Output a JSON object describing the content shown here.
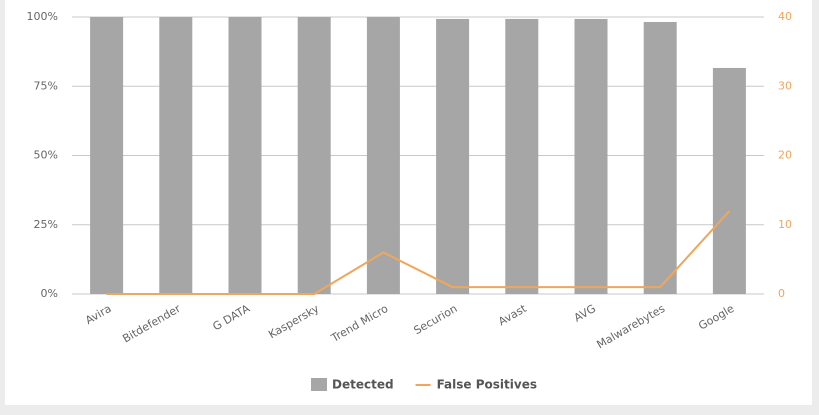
{
  "chart_data": {
    "type": "bar",
    "categories": [
      "Avira",
      "Bitdefender",
      "G DATA",
      "Kaspersky",
      "Trend Micro",
      "Securion",
      "Avast",
      "AVG",
      "Malwarebytes",
      "Google"
    ],
    "series": [
      {
        "name": "Detected",
        "color": "#a6a6a6",
        "values": [
          100,
          100,
          100,
          100,
          100,
          99.3,
          99.3,
          99.3,
          98.2,
          81.6
        ]
      },
      {
        "name": "False Positives",
        "type": "line",
        "axis": "y2",
        "color": "#f0a65c",
        "values": [
          0,
          0,
          0,
          0,
          6,
          1,
          1,
          1,
          1,
          12
        ]
      }
    ],
    "ylim": [
      0,
      100
    ],
    "yticks": [
      {
        "value": 0,
        "label": "0%"
      },
      {
        "value": 25,
        "label": "25%"
      },
      {
        "value": 50,
        "label": "50%"
      },
      {
        "value": 75,
        "label": "75%"
      },
      {
        "value": 100,
        "label": "100%"
      }
    ],
    "y2lim": [
      0,
      40
    ],
    "y2ticks": [
      0,
      10,
      20,
      30,
      40
    ],
    "grid": true,
    "legend": "bottom"
  }
}
